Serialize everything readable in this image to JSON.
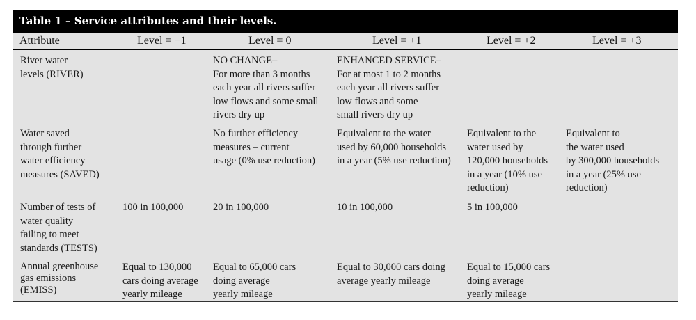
{
  "table": {
    "title": "Table 1 – Service attributes and their levels.",
    "headers": [
      "Attribute",
      "Level = −1",
      "Level = 0",
      "Level = +1",
      "Level = +2",
      "Level = +3"
    ],
    "rows": [
      {
        "attribute": "River water\n levels (RIVER)",
        "cells": [
          "",
          "NO CHANGE–\nFor more than 3 months\neach year all rivers suffer\nlow flows and some small\nrivers dry up",
          "ENHANCED SERVICE–\nFor at most 1 to 2 months\neach year all rivers suffer\nlow flows and some\nsmall rivers dry up",
          "",
          ""
        ]
      },
      {
        "attribute": "Water saved\n through further\n water efficiency\n measures (SAVED)",
        "cells": [
          "",
          "No further efficiency\nmeasures – current\nusage (0% use reduction)",
          "Equivalent to the water\nused by 60,000 households\nin a year (5% use reduction)",
          "Equivalent to the\nwater used by\n120,000 households\nin a year (10% use\nreduction)",
          "Equivalent to\nthe water used\nby 300,000 households\nin a year (25% use\nreduction)"
        ]
      },
      {
        "attribute": "Number of tests of\n water quality\n failing to meet\n standards (TESTS)",
        "cells": [
          "100 in 100,000",
          "20 in 100,000",
          "10 in 100,000",
          "5 in 100,000",
          ""
        ]
      },
      {
        "attribute": "Annual greenhouse\ngas emissions\n(EMISS)",
        "cells": [
          "Equal to 130,000\ncars doing average\nyearly mileage",
          "Equal to 65,000 cars\ndoing average\nyearly mileage",
          "Equal to 30,000 cars doing\naverage yearly mileage",
          "Equal to 15,000 cars\ndoing average\nyearly mileage",
          ""
        ]
      }
    ]
  }
}
